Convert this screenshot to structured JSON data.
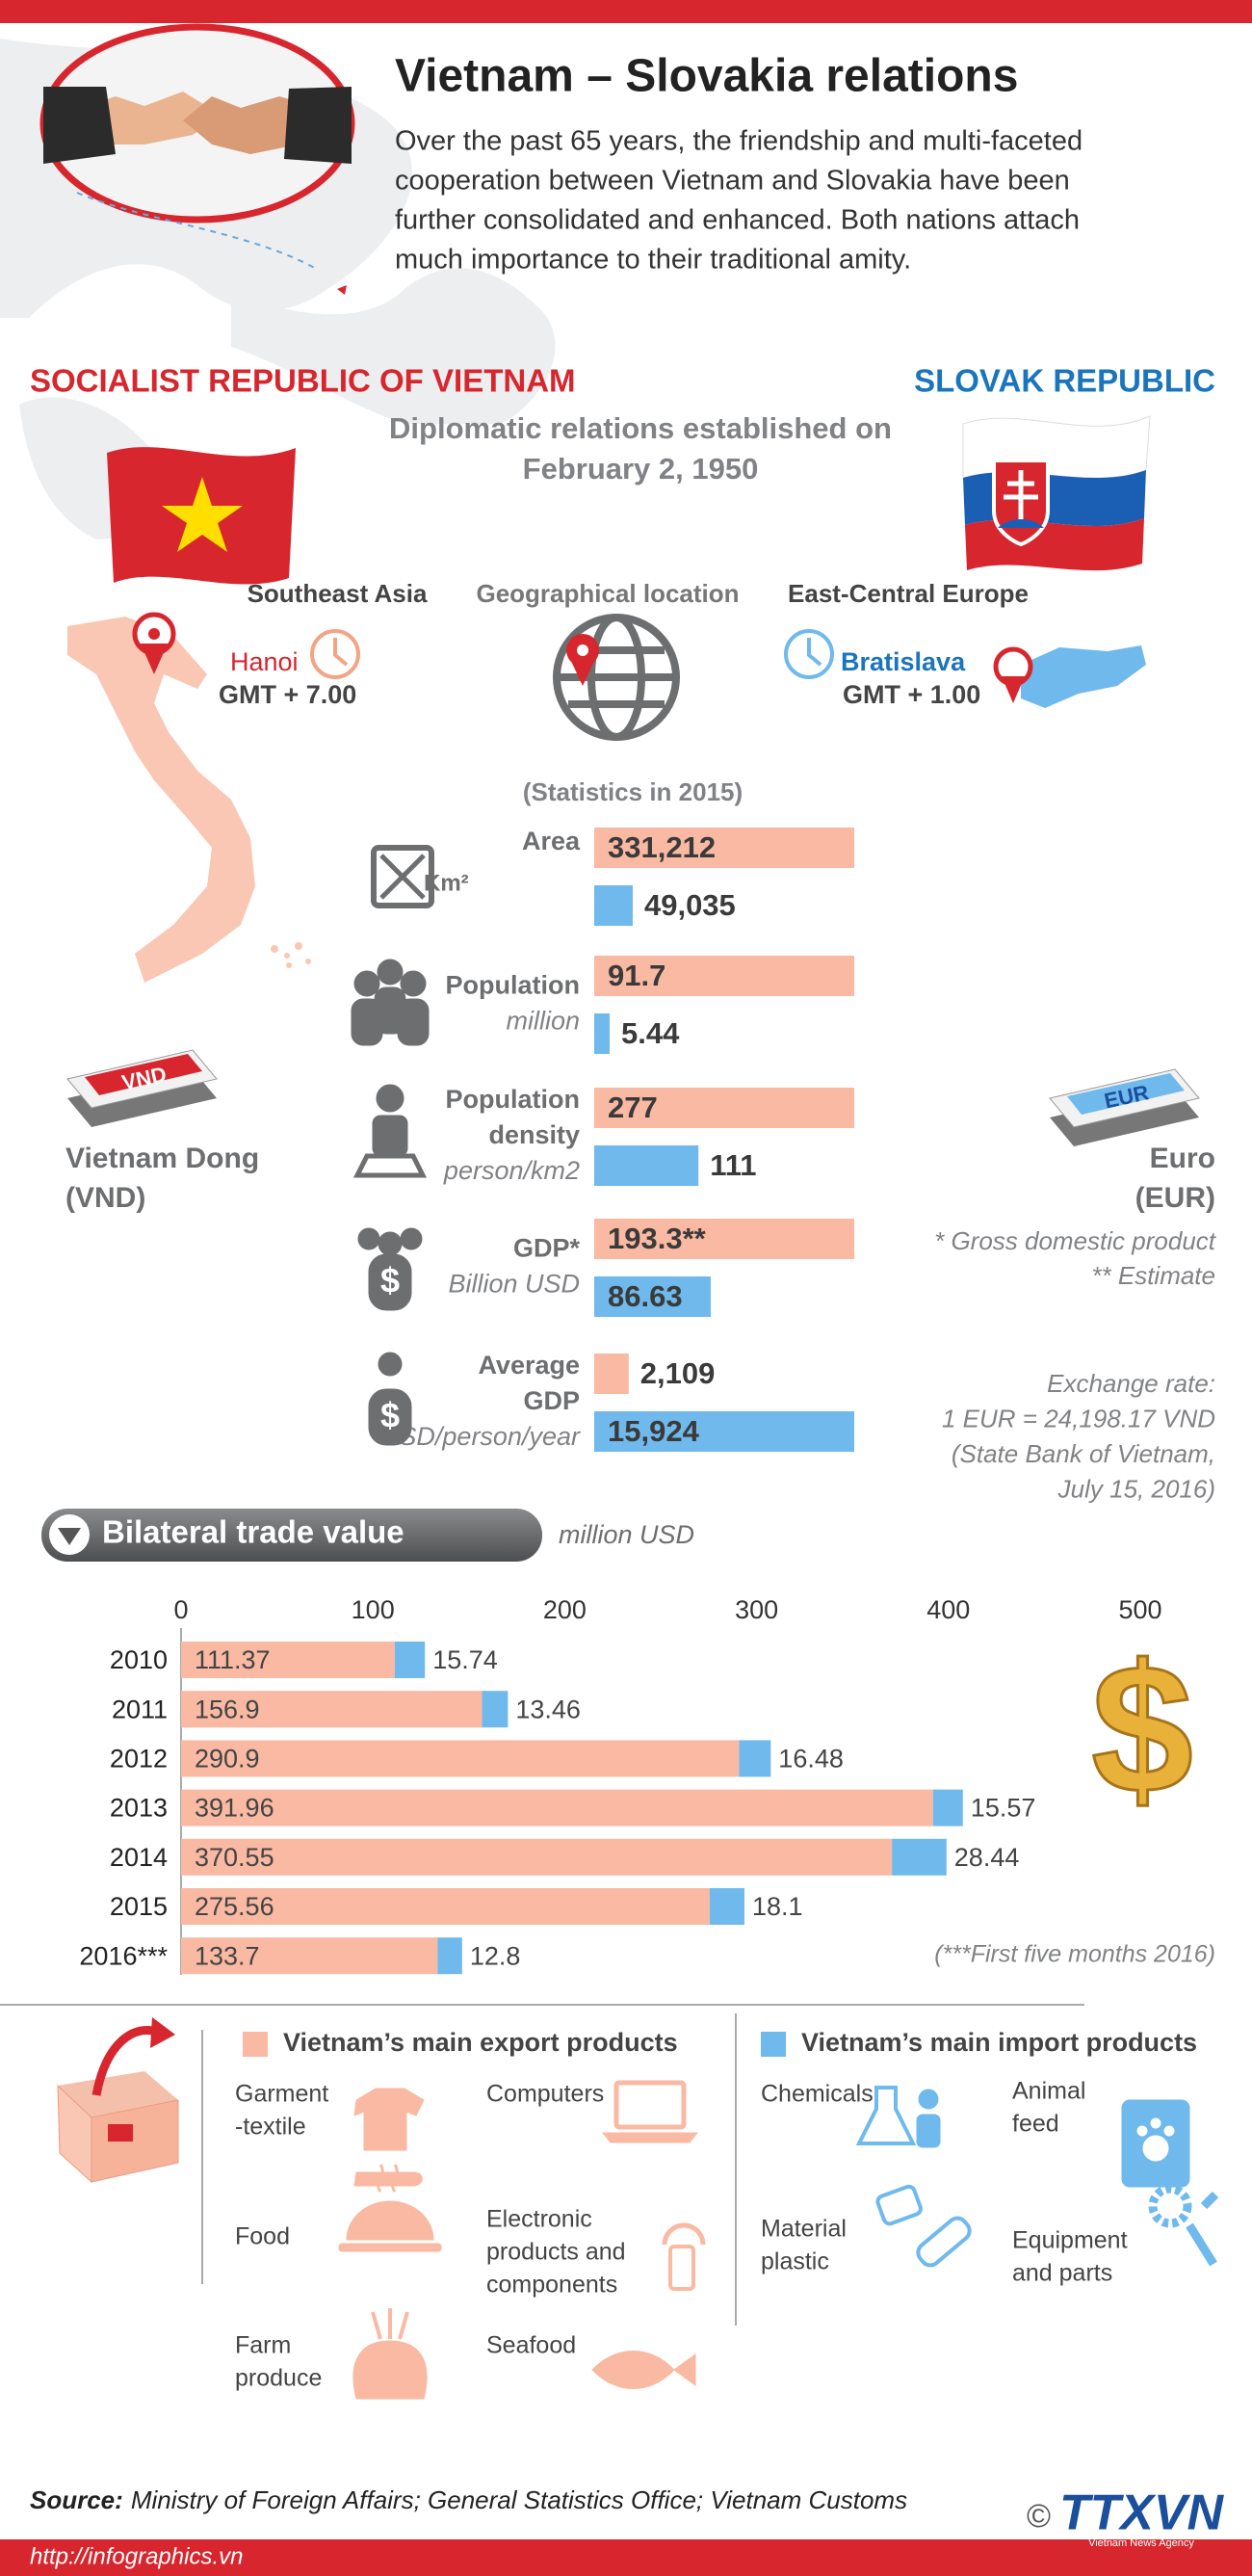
{
  "header": {
    "title": "Vietnam – Slovakia relations",
    "intro": [
      "Over the past 65 years, the friendship and multi-faceted",
      "cooperation between Vietnam and Slovakia have been",
      "further consolidated and enhanced. Both nations attach",
      "much importance to their traditional amity."
    ]
  },
  "countries": {
    "vietnam": {
      "name": "SOCIALIST REPUBLIC OF VIETNAM",
      "region": "Southeast Asia",
      "capital": "Hanoi",
      "timezone": "GMT + 7.00",
      "currency": {
        "bill": "VND",
        "name": "Vietnam Dong",
        "code": "(VND)"
      }
    },
    "slovakia": {
      "name": "SLOVAK REPUBLIC",
      "region": "East-Central Europe",
      "capital": "Bratislava",
      "timezone": "GMT + 1.00",
      "currency": {
        "bill": "EUR",
        "name": "Euro",
        "code": "(EUR)"
      }
    }
  },
  "relations": [
    "Diplomatic relations established on",
    "February 2, 1950"
  ],
  "geo_label": "Geographical location",
  "stats": {
    "title": "(Statistics in 2015)",
    "rows": [
      {
        "label": [
          "Area"
        ],
        "unit": [
          "Km²"
        ],
        "values": [
          331212,
          49035
        ],
        "value_labels": [
          "331,212",
          "49,035"
        ]
      },
      {
        "label": [
          "Population"
        ],
        "unit": [
          "million"
        ],
        "values": [
          91.7,
          5.44
        ]
      },
      {
        "label": [
          "Population",
          "density"
        ],
        "unit": [
          "person/km2"
        ],
        "values": [
          277,
          111
        ]
      },
      {
        "label": [
          "GDP*"
        ],
        "unit": [
          "Billion USD"
        ],
        "values": [
          193.3,
          86.63
        ],
        "value_labels": [
          "193.3**",
          "86.63"
        ]
      },
      {
        "label": [
          "Average",
          "GDP"
        ],
        "unit": [
          "USD/person/year"
        ],
        "values": [
          2109,
          15924
        ],
        "value_labels": [
          "2,109",
          "15,924"
        ]
      }
    ]
  },
  "notes": {
    "gdp": [
      "* Gross domestic product",
      "** Estimate"
    ],
    "exchange": [
      "Exchange rate:",
      "1 EUR = 24,198.17 VND",
      "(State Bank of Vietnam,",
      "July 15, 2016)"
    ]
  },
  "chart_data": {
    "type": "bar",
    "orientation": "horizontal",
    "stacked": true,
    "title": "Bilateral trade value",
    "unit_label": "million USD",
    "categories": [
      "2010",
      "2011",
      "2012",
      "2013",
      "2014",
      "2015",
      "2016***"
    ],
    "series": [
      {
        "name": "Vietnam’s main export products",
        "color": "#f9b9a2",
        "values": [
          111.37,
          156.9,
          290.9,
          391.96,
          370.55,
          275.56,
          133.7
        ]
      },
      {
        "name": "Vietnam’s main import products",
        "color": "#6fb9ec",
        "values": [
          15.74,
          13.46,
          16.48,
          15.57,
          28.44,
          18.1,
          12.8
        ]
      }
    ],
    "xlim": [
      0,
      500
    ],
    "xticks": [
      0,
      100,
      200,
      300,
      400,
      500
    ],
    "note": "(***First five months 2016)"
  },
  "products": {
    "export": [
      [
        "Garment",
        "-textile"
      ],
      [
        "Computers"
      ],
      [
        "Food"
      ],
      [
        "Electronic",
        "products and",
        "components"
      ],
      [
        "Farm",
        "produce"
      ],
      [
        "Seafood"
      ]
    ],
    "import": [
      [
        "Chemicals"
      ],
      [
        "Animal",
        "feed"
      ],
      [
        "Material",
        "plastic"
      ],
      [
        "Equipment",
        "and parts"
      ]
    ]
  },
  "footer": {
    "source_label": "Source:",
    "source": "Ministry of Foreign Affairs; General Statistics Office; Vietnam Customs",
    "copyright": "©",
    "logo": "TTXVN",
    "logo_sub": "Vietnam News Agency",
    "url": "http://infographics.vn"
  }
}
